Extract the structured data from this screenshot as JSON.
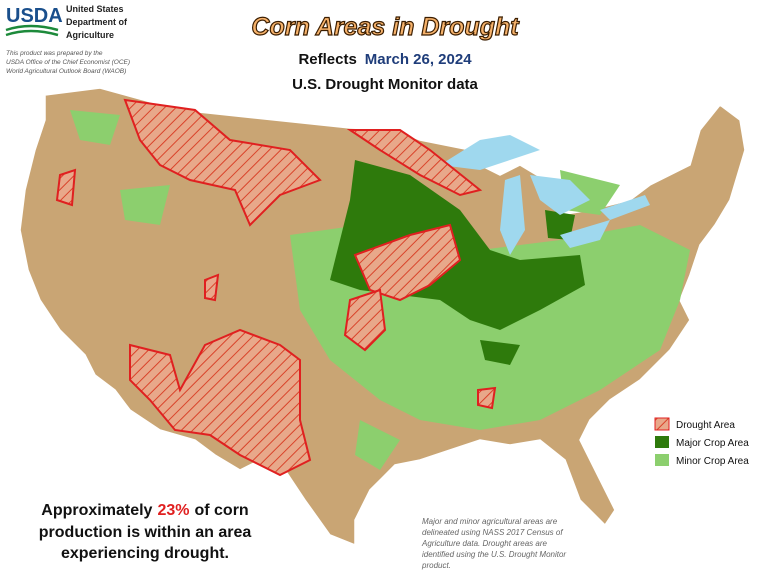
{
  "header": {
    "logo": "USDA",
    "agency": [
      "United States",
      "Department of",
      "Agriculture"
    ],
    "credit": [
      "This product was prepared by the",
      "USDA Office of the Chief Economist (OCE)",
      "World Agricultural Outlook Board (WAOB)"
    ]
  },
  "title": "Corn Areas in Drought",
  "subtitle": {
    "prefix": "Reflects",
    "date": "March 26, 2024",
    "source": "U.S. Drought Monitor data"
  },
  "legend": [
    "Drought Area",
    "Major Crop Area",
    "Minor Crop Area"
  ],
  "summary": {
    "prefix": "Approximately",
    "highlight": "23%",
    "rest": "of corn",
    "lines": [
      "production is within an area",
      "experiencing drought."
    ]
  },
  "note": [
    "Major and minor agricultural areas are",
    "delineated using NASS 2017 Census of",
    "Agriculture data.  Drought areas are",
    "identified using the U.S. Drought Monitor",
    "product."
  ]
}
